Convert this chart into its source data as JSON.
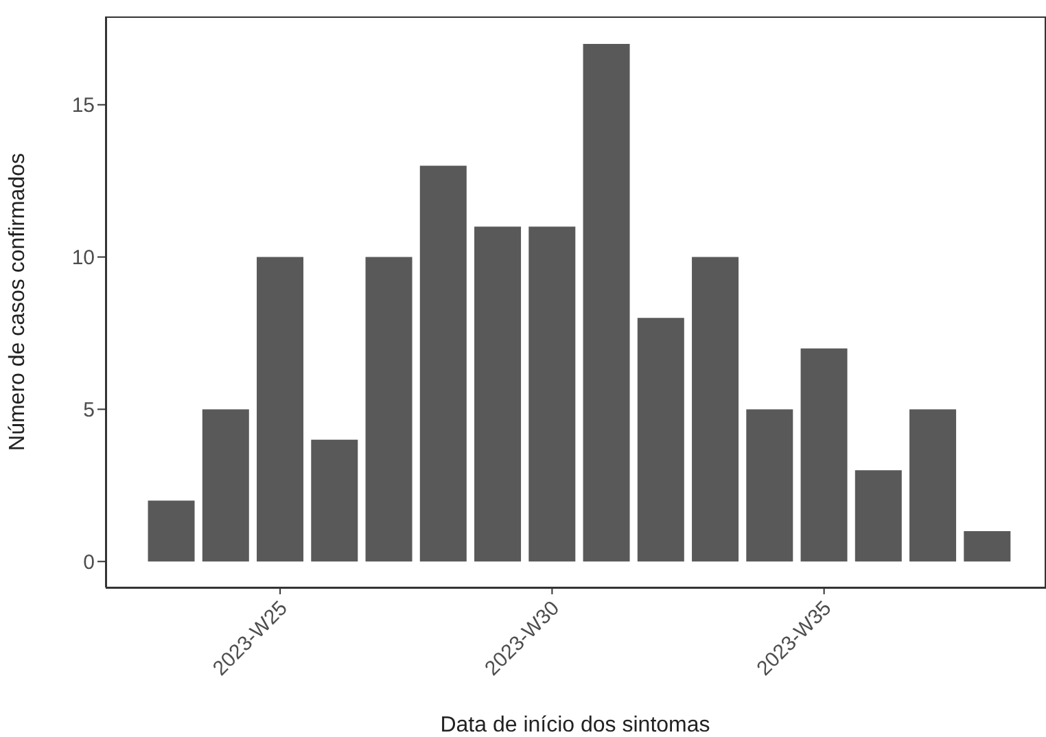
{
  "chart_data": {
    "type": "bar",
    "xlabel": "Data de início dos sintomas",
    "ylabel": "Número de casos confirmados",
    "categories": [
      null,
      null,
      "2023-W25",
      null,
      null,
      null,
      null,
      "2023-W30",
      null,
      null,
      null,
      null,
      "2023-W35",
      null,
      null,
      null
    ],
    "values": [
      2,
      5,
      10,
      4,
      10,
      13,
      11,
      11,
      17,
      8,
      10,
      5,
      7,
      3,
      5,
      1
    ],
    "color": "#595959",
    "ylim": [
      -0.85,
      17.9
    ],
    "yticks": [
      0,
      5,
      10,
      15
    ]
  }
}
